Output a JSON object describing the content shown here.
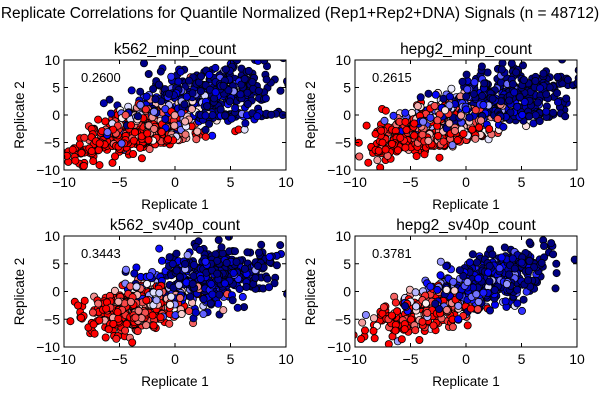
{
  "figure_title": "Replicate Correlations for Quantile Normalized (Rep1+Rep2+DNA) Signals (n = 48712)",
  "chart_data": [
    {
      "type": "scatter",
      "title": "k562_minp_count",
      "annotation": "0.2600",
      "xlabel": "Replicate 1",
      "ylabel": "Replicate 2",
      "xlim": [
        -10,
        10
      ],
      "ylim": [
        -10,
        10
      ],
      "xticks": [
        "-10",
        "-5",
        "0",
        "5",
        "10"
      ],
      "yticks": [
        "10",
        "5",
        "0",
        "-5",
        "-10"
      ],
      "colormap": "bwr_r",
      "color_stops": [
        "#ff0000",
        "#f08080",
        "#ffffff",
        "#9999ff",
        "#0000ff",
        "#000080"
      ],
      "clusters": [
        {
          "cx": -3,
          "cy": -2,
          "sx": 3.2,
          "sy": 3.0,
          "rho": 0.7,
          "color_bias": 0.15,
          "n": 380
        },
        {
          "cx": 2.5,
          "cy": 3.5,
          "sx": 3.5,
          "sy": 3.2,
          "rho": 0.5,
          "color_bias": 0.85,
          "n": 420
        },
        {
          "cx": 4,
          "cy": 0,
          "sx": 4.0,
          "sy": 0.3,
          "rho": 0.0,
          "color_bias": 0.9,
          "n": 80
        },
        {
          "cx": -3,
          "cy": -5,
          "sx": 3.5,
          "sy": 1.0,
          "rho": 0.9,
          "color_bias": 0.1,
          "n": 120
        }
      ]
    },
    {
      "type": "scatter",
      "title": "hepg2_minp_count",
      "annotation": "0.2615",
      "xlabel": "Replicate 1",
      "ylabel": "Replicate 2",
      "xlim": [
        -10,
        10
      ],
      "ylim": [
        -10,
        10
      ],
      "xticks": [
        "-10",
        "-5",
        "0",
        "5",
        "10"
      ],
      "yticks": [
        "10",
        "5",
        "0",
        "-5",
        "-10"
      ],
      "colormap": "bwr_r",
      "color_stops": [
        "#ff0000",
        "#f08080",
        "#ffffff",
        "#9999ff",
        "#0000ff",
        "#000080"
      ],
      "clusters": [
        {
          "cx": -3,
          "cy": -2,
          "sx": 3.0,
          "sy": 2.6,
          "rho": 0.6,
          "color_bias": 0.2,
          "n": 380
        },
        {
          "cx": 2.5,
          "cy": 3,
          "sx": 3.2,
          "sy": 2.6,
          "rho": 0.5,
          "color_bias": 0.85,
          "n": 420
        },
        {
          "cx": 5,
          "cy": 0,
          "sx": 2.5,
          "sy": 0.4,
          "rho": 0.0,
          "color_bias": 0.95,
          "n": 60
        },
        {
          "cx": -3,
          "cy": -5,
          "sx": 3.0,
          "sy": 1.0,
          "rho": 0.9,
          "color_bias": 0.2,
          "n": 100
        }
      ]
    },
    {
      "type": "scatter",
      "title": "k562_sv40p_count",
      "annotation": "0.3443",
      "xlabel": "Replicate 1",
      "ylabel": "Replicate 2",
      "xlim": [
        -10,
        10
      ],
      "ylim": [
        -10,
        10
      ],
      "xticks": [
        "-10",
        "-5",
        "0",
        "5",
        "10"
      ],
      "yticks": [
        "10",
        "5",
        "0",
        "-5",
        "-10"
      ],
      "colormap": "bwr_r",
      "color_stops": [
        "#ff0000",
        "#f08080",
        "#ffffff",
        "#9999ff",
        "#0000ff",
        "#000080"
      ],
      "clusters": [
        {
          "cx": -3.5,
          "cy": -3,
          "sx": 2.4,
          "sy": 2.2,
          "rho": 0.4,
          "color_bias": 0.2,
          "n": 380
        },
        {
          "cx": 3,
          "cy": 2.5,
          "sx": 3.0,
          "sy": 2.6,
          "rho": 0.4,
          "color_bias": 0.85,
          "n": 480
        }
      ]
    },
    {
      "type": "scatter",
      "title": "hepg2_sv40p_count",
      "annotation": "0.3781",
      "xlabel": "Replicate 1",
      "ylabel": "Replicate 2",
      "xlim": [
        -10,
        10
      ],
      "ylim": [
        -10,
        10
      ],
      "xticks": [
        "-10",
        "-5",
        "0",
        "5",
        "10"
      ],
      "yticks": [
        "10",
        "5",
        "0",
        "-5",
        "-10"
      ],
      "colormap": "bwr_r",
      "color_stops": [
        "#ff0000",
        "#f08080",
        "#ffffff",
        "#9999ff",
        "#0000ff",
        "#000080"
      ],
      "clusters": [
        {
          "cx": -3.5,
          "cy": -3.5,
          "sx": 2.2,
          "sy": 2.0,
          "rho": 0.5,
          "color_bias": 0.2,
          "n": 300
        },
        {
          "cx": 1.5,
          "cy": 1.5,
          "sx": 3.0,
          "sy": 2.8,
          "rho": 0.6,
          "color_bias": 0.8,
          "n": 520
        }
      ]
    }
  ]
}
